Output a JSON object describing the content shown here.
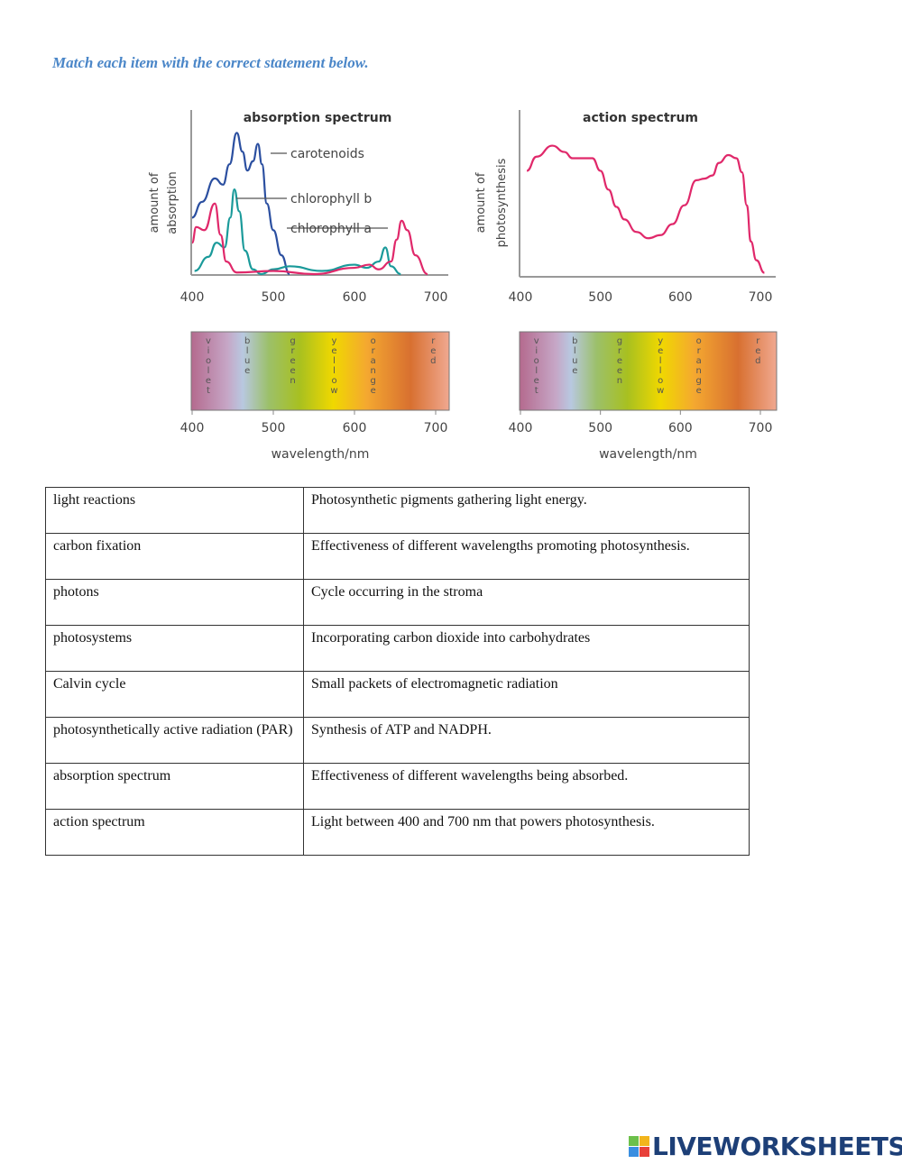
{
  "instruction": "Match each item with the correct statement below.",
  "chart_data": [
    {
      "type": "line",
      "title": "absorption spectrum",
      "ylabel": "amount of absorption",
      "xlim": [
        400,
        700
      ],
      "xticks": [
        "400",
        "500",
        "600",
        "700"
      ],
      "series": [
        {
          "name": "carotenoids",
          "color": "#2b4fa0",
          "points": [
            [
              400,
              36
            ],
            [
              412,
              46
            ],
            [
              428,
              61
            ],
            [
              438,
              57
            ],
            [
              446,
              70
            ],
            [
              455,
              90
            ],
            [
              462,
              78
            ],
            [
              468,
              66
            ],
            [
              475,
              72
            ],
            [
              481,
              83
            ],
            [
              486,
              70
            ],
            [
              492,
              45
            ],
            [
              500,
              28
            ],
            [
              510,
              12
            ],
            [
              520,
              0
            ]
          ]
        },
        {
          "name": "chlorophyll b",
          "color": "#1a9a9a",
          "points": [
            [
              403,
              2
            ],
            [
              420,
              11
            ],
            [
              430,
              20
            ],
            [
              440,
              17
            ],
            [
              447,
              36
            ],
            [
              452,
              54
            ],
            [
              458,
              40
            ],
            [
              465,
              15
            ],
            [
              475,
              3
            ],
            [
              485,
              0
            ],
            [
              500,
              3
            ],
            [
              520,
              5
            ],
            [
              560,
              2
            ],
            [
              600,
              6
            ],
            [
              615,
              4
            ],
            [
              630,
              8
            ],
            [
              638,
              17
            ],
            [
              645,
              5
            ],
            [
              657,
              0
            ]
          ]
        },
        {
          "name": "chlorophyll a",
          "color": "#e0286a",
          "points": [
            [
              400,
              20
            ],
            [
              405,
              30
            ],
            [
              415,
              28
            ],
            [
              428,
              45
            ],
            [
              435,
              25
            ],
            [
              442,
              8
            ],
            [
              455,
              1
            ],
            [
              500,
              2
            ],
            [
              550,
              0
            ],
            [
              600,
              4
            ],
            [
              618,
              6
            ],
            [
              630,
              3
            ],
            [
              645,
              8
            ],
            [
              652,
              22
            ],
            [
              658,
              34
            ],
            [
              665,
              28
            ],
            [
              675,
              12
            ],
            [
              690,
              0
            ]
          ]
        }
      ]
    },
    {
      "type": "line",
      "title": "action spectrum",
      "ylabel": "amount of photosynthesis",
      "xlim": [
        400,
        700
      ],
      "xticks": [
        "400",
        "500",
        "600",
        "700"
      ],
      "series": [
        {
          "name": "",
          "color": "#e0286a",
          "points": [
            [
              408,
              67
            ],
            [
              420,
              76
            ],
            [
              440,
              83
            ],
            [
              455,
              79
            ],
            [
              465,
              75
            ],
            [
              490,
              75
            ],
            [
              500,
              67
            ],
            [
              510,
              55
            ],
            [
              520,
              44
            ],
            [
              530,
              36
            ],
            [
              545,
              28
            ],
            [
              560,
              24
            ],
            [
              575,
              26
            ],
            [
              590,
              33
            ],
            [
              605,
              45
            ],
            [
              620,
              61
            ],
            [
              630,
              62
            ],
            [
              640,
              64
            ],
            [
              648,
              72
            ],
            [
              660,
              77
            ],
            [
              670,
              75
            ],
            [
              677,
              66
            ],
            [
              683,
              45
            ],
            [
              688,
              22
            ],
            [
              695,
              10
            ],
            [
              705,
              2
            ]
          ]
        }
      ]
    }
  ],
  "spectrum_bar": {
    "labels": [
      "violet",
      "blue",
      "green",
      "yellow",
      "orange",
      "red"
    ],
    "xlabel": "wavelength/nm",
    "xticks": [
      "400",
      "500",
      "600",
      "700"
    ]
  },
  "table": {
    "rows": [
      [
        "light reactions",
        "Photosynthetic pigments gathering light energy."
      ],
      [
        "carbon fixation",
        "Effectiveness of different wavelengths promoting photosynthesis."
      ],
      [
        "photons",
        "Cycle occurring in the stroma"
      ],
      [
        "photosystems",
        "Incorporating carbon dioxide into carbohydrates"
      ],
      [
        "Calvin cycle",
        "Small packets of electromagnetic radiation"
      ],
      [
        "photosynthetically active radiation (PAR)",
        "Synthesis of ATP and NADPH."
      ],
      [
        "absorption spectrum",
        "Effectiveness of different wavelengths being absorbed."
      ],
      [
        "action spectrum",
        "Light between 400 and 700 nm that powers photosynthesis."
      ]
    ]
  },
  "logo": {
    "text": "LIVEWORKSHEETS",
    "blocks": [
      "L",
      "I",
      "V",
      "E"
    ]
  }
}
